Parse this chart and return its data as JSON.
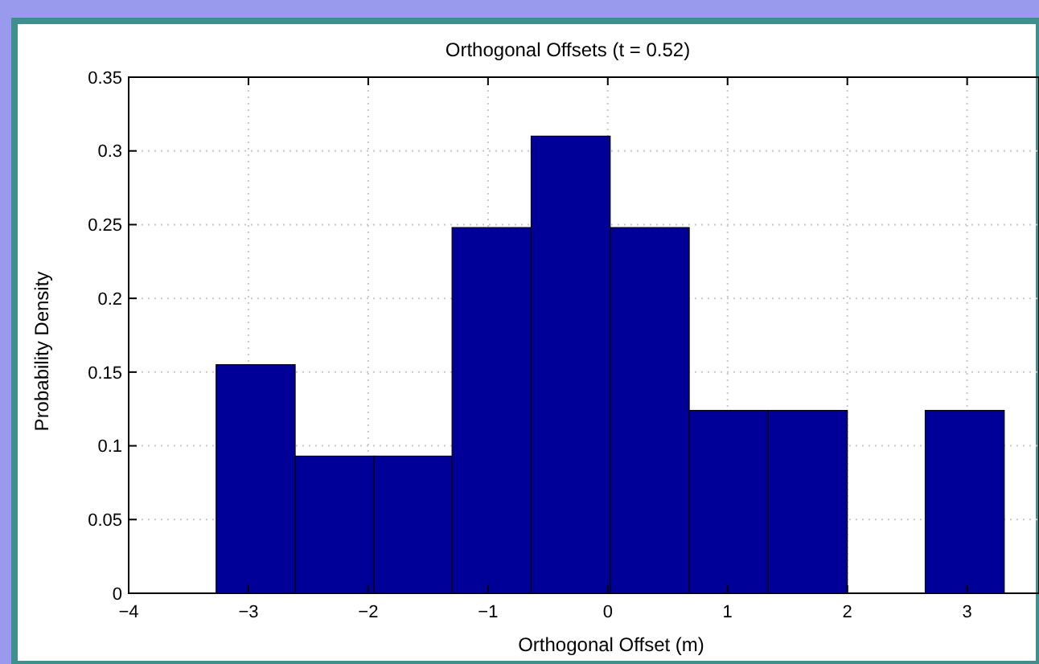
{
  "chart_data": {
    "type": "histogram",
    "title": "Orthogonal Offsets (t = 0.52)",
    "xlabel": "Orthogonal Offset (m)",
    "ylabel": "Probability Density",
    "bins": [
      -3.27,
      -2.61,
      -1.95,
      -1.3,
      -0.64,
      0.02,
      0.68,
      1.34,
      2.0,
      2.65,
      3.31
    ],
    "values": [
      0.155,
      0.093,
      0.093,
      0.248,
      0.31,
      0.248,
      0.124,
      0.124,
      0,
      0.124
    ],
    "color": "#000099",
    "xlim": [
      -4,
      3.6
    ],
    "xticks": [
      {
        "value": -4,
        "label": "−4"
      },
      {
        "value": -3,
        "label": "−3"
      },
      {
        "value": -2,
        "label": "−2"
      },
      {
        "value": -1,
        "label": "−1"
      },
      0,
      1,
      2,
      3
    ],
    "ylim": [
      0,
      0.35
    ],
    "yticks": [
      0,
      0.05,
      0.1,
      0.15,
      0.2,
      0.25,
      0.3,
      0.35
    ],
    "grid": true
  }
}
